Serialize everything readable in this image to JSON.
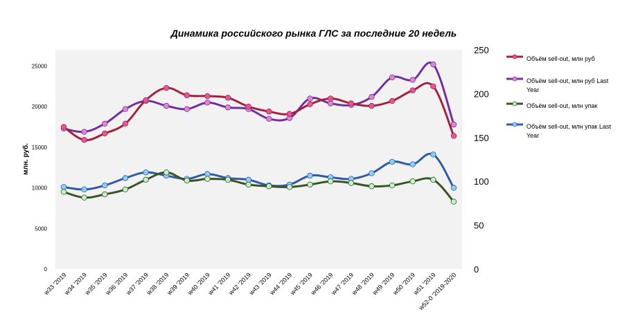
{
  "chart_data": {
    "type": "line",
    "title": "Динамика  российского  рынка ГЛС за последние  20 недель",
    "ylabel": "млн. руб.",
    "xlabel": "",
    "categories": [
      "w33 '2019",
      "w34 '2019",
      "w35 '2019",
      "w36 '2019",
      "w37 '2019",
      "w38 '2019",
      "w39 '2019",
      "w40 '2019",
      "w41 '2019",
      "w42 '2019",
      "w43 '2019",
      "w44 '2019",
      "w45 '2019",
      "w46 '2019",
      "w47 '2019",
      "w48 '2019",
      "w49 '2019",
      "w50 '2019",
      "w51 '2019",
      "w52-0 '2019-2020"
    ],
    "y_left": {
      "ylim": [
        0,
        27000
      ],
      "ticks": [
        "0",
        "5000",
        "10000",
        "15000",
        "20000",
        "25000"
      ],
      "tick_values": [
        0,
        5000,
        10000,
        15000,
        20000,
        25000
      ]
    },
    "y_right": {
      "ylim": [
        0,
        250
      ],
      "ticks": [
        "0",
        "50",
        "100",
        "150",
        "200",
        "250"
      ],
      "tick_values": [
        0,
        50,
        100,
        150,
        200,
        250
      ]
    },
    "grid": false,
    "legend_position": "right",
    "series": [
      {
        "name": "Объём sell-out, млн руб",
        "axis": "left",
        "color": "#A3203D",
        "marker": "#E7559A",
        "values": [
          17500,
          15900,
          16700,
          17900,
          20800,
          22300,
          21400,
          21300,
          21100,
          20000,
          19400,
          19100,
          20300,
          21000,
          20400,
          20100,
          20700,
          22000,
          22500,
          16400
        ]
      },
      {
        "name": "Объём sell-out, млн руб Last Year",
        "axis": "left",
        "color": "#7030A0",
        "marker": "#E485D2",
        "values": [
          17300,
          16900,
          17900,
          19700,
          20700,
          20100,
          19700,
          20500,
          19900,
          19700,
          18500,
          18600,
          21000,
          20400,
          20200,
          21200,
          23600,
          23300,
          25200,
          17800
        ]
      },
      {
        "name": "Объём sell-out, млн упак",
        "axis": "left",
        "color": "#375623",
        "marker": "#C6EFCE",
        "values": [
          9500,
          8800,
          9200,
          9800,
          11000,
          11900,
          10900,
          11100,
          11000,
          10400,
          10200,
          10100,
          10400,
          10800,
          10600,
          10200,
          10300,
          10800,
          11000,
          8300
        ]
      },
      {
        "name": "Объём sell-out, млн упак Last Year",
        "axis": "left",
        "color": "#2E5AA7",
        "marker": "#8ED0F5",
        "values": [
          10100,
          9800,
          10300,
          11200,
          11900,
          11500,
          11100,
          11700,
          11200,
          11000,
          10300,
          10400,
          11500,
          11300,
          11100,
          11800,
          13200,
          12900,
          14100,
          10000
        ]
      }
    ]
  }
}
